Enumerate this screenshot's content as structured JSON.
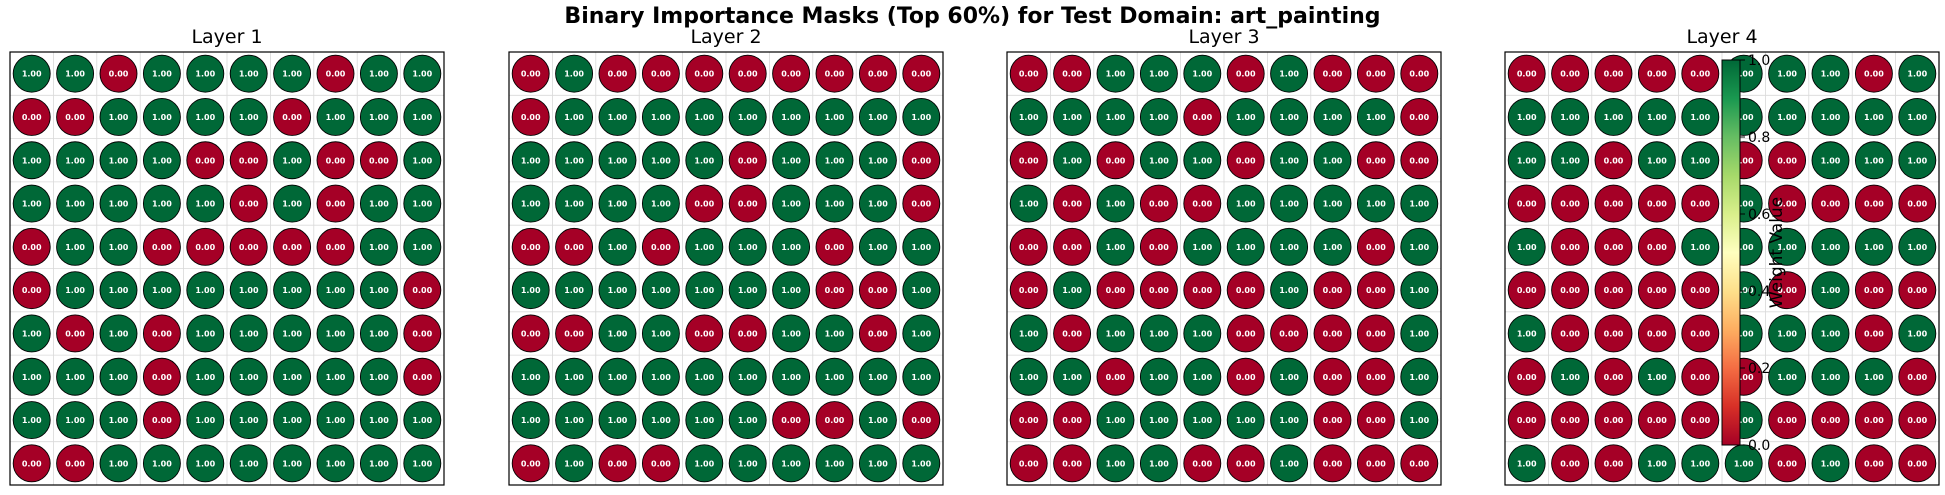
{
  "chart_data": {
    "type": "heatmap",
    "title": "Binary Importance Masks (Top 60%) for Test Domain: art_painting",
    "colormap": "RdYlGn",
    "colors": {
      "low": "#a50026",
      "high": "#006837",
      "grid": "#d9d9d9"
    },
    "colorbar": {
      "label": "Weight Value",
      "range": [
        0.0,
        1.0
      ],
      "ticks": [
        "0.0",
        "0.2",
        "0.4",
        "0.6",
        "0.8",
        "1.0"
      ]
    },
    "grid": true,
    "panels": [
      {
        "title": "Layer 1",
        "values": [
          [
            1,
            1,
            0,
            1,
            1,
            1,
            1,
            0,
            1,
            1
          ],
          [
            0,
            0,
            1,
            1,
            1,
            1,
            0,
            1,
            1,
            1
          ],
          [
            1,
            1,
            1,
            1,
            0,
            0,
            1,
            0,
            0,
            1
          ],
          [
            1,
            1,
            1,
            1,
            1,
            0,
            1,
            0,
            1,
            1
          ],
          [
            0,
            1,
            1,
            0,
            0,
            0,
            0,
            0,
            1,
            1
          ],
          [
            0,
            1,
            1,
            1,
            1,
            1,
            1,
            1,
            1,
            0
          ],
          [
            1,
            0,
            1,
            0,
            1,
            1,
            1,
            1,
            1,
            0
          ],
          [
            1,
            1,
            1,
            0,
            1,
            1,
            1,
            1,
            1,
            0
          ],
          [
            1,
            1,
            1,
            0,
            1,
            1,
            1,
            1,
            1,
            1
          ],
          [
            0,
            0,
            1,
            1,
            1,
            1,
            1,
            1,
            1,
            1
          ]
        ]
      },
      {
        "title": "Layer 2",
        "values": [
          [
            0,
            1,
            0,
            0,
            0,
            0,
            0,
            0,
            0,
            0
          ],
          [
            0,
            1,
            1,
            1,
            1,
            1,
            1,
            1,
            1,
            1
          ],
          [
            1,
            1,
            1,
            1,
            1,
            0,
            1,
            1,
            1,
            0
          ],
          [
            1,
            1,
            1,
            1,
            0,
            0,
            1,
            1,
            1,
            0
          ],
          [
            0,
            0,
            1,
            0,
            1,
            1,
            1,
            0,
            1,
            1
          ],
          [
            1,
            1,
            1,
            1,
            1,
            1,
            1,
            0,
            0,
            1
          ],
          [
            0,
            0,
            1,
            1,
            0,
            0,
            1,
            1,
            0,
            1
          ],
          [
            1,
            1,
            1,
            1,
            1,
            1,
            1,
            1,
            1,
            1
          ],
          [
            1,
            1,
            1,
            1,
            1,
            1,
            0,
            0,
            1,
            0
          ],
          [
            0,
            1,
            0,
            0,
            1,
            1,
            1,
            1,
            1,
            1
          ]
        ]
      },
      {
        "title": "Layer 3",
        "values": [
          [
            0,
            0,
            1,
            1,
            1,
            0,
            1,
            0,
            0,
            0
          ],
          [
            1,
            1,
            1,
            1,
            0,
            1,
            1,
            1,
            1,
            0
          ],
          [
            0,
            1,
            0,
            1,
            1,
            0,
            1,
            1,
            0,
            0
          ],
          [
            1,
            0,
            1,
            0,
            0,
            1,
            1,
            1,
            1,
            1
          ],
          [
            0,
            0,
            1,
            0,
            1,
            1,
            1,
            1,
            0,
            1
          ],
          [
            0,
            1,
            0,
            0,
            0,
            0,
            1,
            0,
            0,
            1
          ],
          [
            1,
            0,
            1,
            1,
            1,
            0,
            0,
            0,
            0,
            1
          ],
          [
            1,
            1,
            0,
            1,
            1,
            0,
            1,
            0,
            0,
            1
          ],
          [
            0,
            0,
            1,
            1,
            1,
            1,
            1,
            0,
            0,
            1
          ],
          [
            0,
            0,
            1,
            1,
            0,
            0,
            1,
            0,
            0,
            0
          ]
        ]
      },
      {
        "title": "Layer 4",
        "values": [
          [
            0,
            0,
            0,
            0,
            0,
            1,
            1,
            1,
            0,
            1
          ],
          [
            1,
            1,
            1,
            1,
            1,
            1,
            1,
            1,
            1,
            1
          ],
          [
            1,
            1,
            0,
            1,
            1,
            0,
            0,
            1,
            1,
            1
          ],
          [
            0,
            0,
            0,
            0,
            0,
            1,
            0,
            0,
            0,
            0
          ],
          [
            1,
            0,
            0,
            0,
            1,
            1,
            1,
            1,
            1,
            1
          ],
          [
            0,
            0,
            0,
            0,
            0,
            1,
            0,
            1,
            0,
            0
          ],
          [
            1,
            0,
            0,
            0,
            0,
            1,
            1,
            1,
            0,
            1
          ],
          [
            0,
            1,
            0,
            1,
            0,
            0,
            1,
            1,
            1,
            0
          ],
          [
            0,
            0,
            0,
            0,
            0,
            1,
            0,
            0,
            0,
            0
          ],
          [
            1,
            0,
            0,
            1,
            1,
            1,
            0,
            1,
            0,
            0
          ]
        ]
      }
    ]
  }
}
